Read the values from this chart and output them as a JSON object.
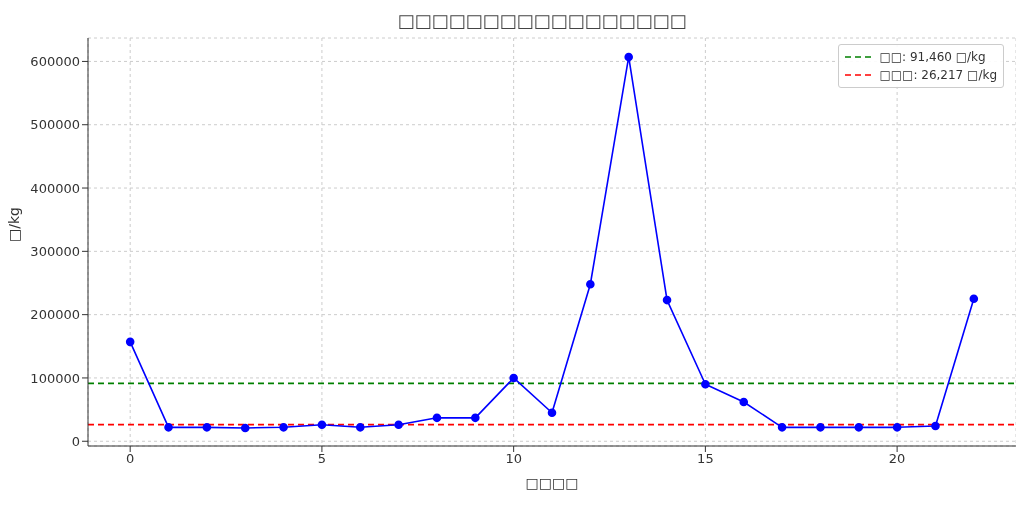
{
  "chart_data": {
    "type": "line",
    "title": "□□□□□□□□□□□□□□□□□",
    "xlabel": "□□□□",
    "ylabel": "□/kg",
    "x": [
      0,
      1,
      2,
      3,
      4,
      5,
      6,
      7,
      8,
      9,
      10,
      11,
      12,
      13,
      14,
      15,
      16,
      17,
      18,
      19,
      20,
      21,
      22
    ],
    "series": [
      {
        "color": "#0000ff",
        "values": [
          157000,
          22000,
          22000,
          21000,
          22000,
          26000,
          22000,
          26000,
          37000,
          37000,
          100000,
          45000,
          248000,
          607000,
          223000,
          90000,
          62000,
          22000,
          22000,
          22000,
          22000,
          24000,
          225000
        ]
      }
    ],
    "xlim": [
      -1.1,
      23.1
    ],
    "xticks": [
      0,
      5,
      10,
      15,
      20
    ],
    "ylim": [
      -7500,
      637000
    ],
    "yticks": [
      0,
      100000,
      200000,
      300000,
      400000,
      500000,
      600000
    ],
    "ref_lines": [
      {
        "axis": "y",
        "value": 91460,
        "label": "□□: 91,460 □/kg",
        "color": "#008000",
        "line_style": "dashed"
      },
      {
        "axis": "y",
        "value": 26217,
        "label": "□□□: 26,217 □/kg",
        "color": "#ff0000",
        "line_style": "dashed"
      }
    ],
    "grid": true,
    "legend": "top right",
    "marker": "circle",
    "line_style": "solid"
  }
}
